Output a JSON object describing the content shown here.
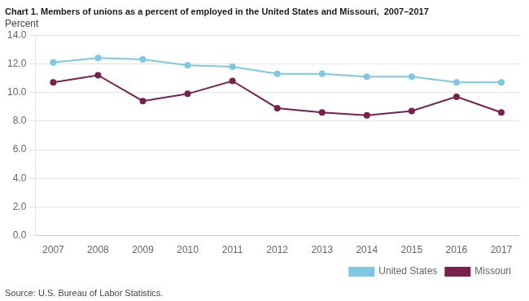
{
  "chart_data": {
    "type": "line",
    "title": "Chart 1. Members of unions as a percent of employed in the United States and Missouri,  2007–2017",
    "ylabel": "Percent",
    "source": "Source: U.S. Bureau of Labor Statistics.",
    "x": [
      2007,
      2008,
      2009,
      2010,
      2011,
      2012,
      2013,
      2014,
      2015,
      2016,
      2017
    ],
    "series": [
      {
        "name": "United States",
        "color": "#7ec8e3",
        "marker": "circle",
        "values": [
          12.1,
          12.4,
          12.3,
          11.9,
          11.8,
          11.3,
          11.3,
          11.1,
          11.1,
          10.7,
          10.7
        ]
      },
      {
        "name": "Missouri",
        "color": "#7b1f4e",
        "marker": "circle",
        "values": [
          10.7,
          11.2,
          9.4,
          9.9,
          10.8,
          8.9,
          8.6,
          8.4,
          8.7,
          9.7,
          8.6
        ]
      }
    ],
    "xlim": [
      2006.6,
      2017.4
    ],
    "xticks": [
      2007,
      2008,
      2009,
      2010,
      2011,
      2012,
      2013,
      2014,
      2015,
      2016,
      2017
    ],
    "ylim": [
      0.0,
      14.0
    ],
    "yticks": [
      {
        "value": 0,
        "label": "0.0"
      },
      {
        "value": 2,
        "label": "2.0"
      },
      {
        "value": 4,
        "label": "4.0"
      },
      {
        "value": 6,
        "label": "6.0"
      },
      {
        "value": 8,
        "label": "8.0"
      },
      {
        "value": 10,
        "label": "10.0"
      },
      {
        "value": 12,
        "label": "12.0"
      },
      {
        "value": 14,
        "label": "14.0"
      }
    ],
    "grid": "y",
    "legend": "lower right"
  }
}
